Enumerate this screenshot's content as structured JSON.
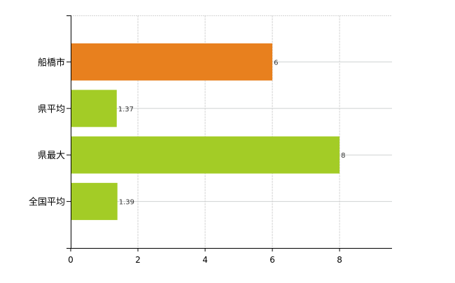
{
  "chart_data": {
    "type": "bar",
    "orientation": "horizontal",
    "categories": [
      "船橋市",
      "県平均",
      "県最大",
      "全国平均"
    ],
    "values": [
      6,
      1.37,
      8,
      1.39
    ],
    "data_labels": [
      "6",
      "1.37",
      "8",
      "1.39"
    ],
    "bar_colors": [
      "#e8801e",
      "#a3cc26",
      "#a3cc26",
      "#a3cc26"
    ],
    "x_ticks": [
      0,
      2,
      4,
      6,
      8
    ],
    "xlim": [
      0,
      9.56
    ],
    "title": "",
    "xlabel": "",
    "ylabel": "",
    "grid": true,
    "legend": "none"
  }
}
